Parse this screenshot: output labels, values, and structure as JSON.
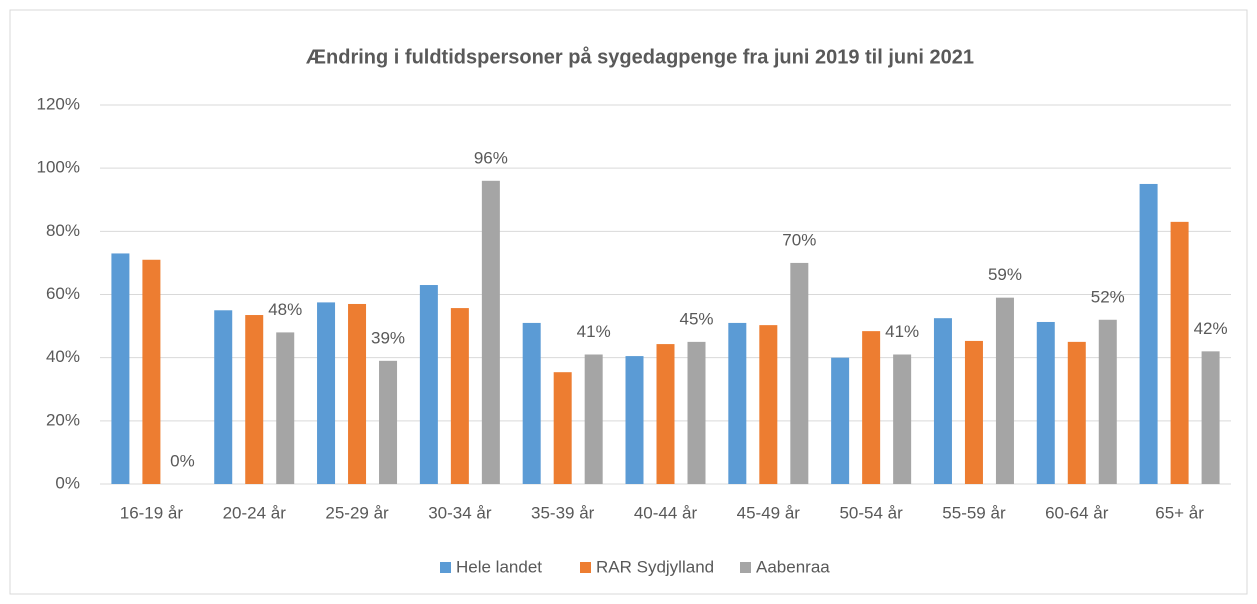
{
  "chart_data": {
    "type": "bar",
    "title": "Ændring i fuldtidspersoner på sygedagpenge fra juni 2019 til juni 2021",
    "categories": [
      "16-19 år",
      "20-24 år",
      "25-29 år",
      "30-34 år",
      "35-39 år",
      "40-44 år",
      "45-49 år",
      "50-54 år",
      "55-59 år",
      "60-64 år",
      "65+ år"
    ],
    "series": [
      {
        "name": "Hele landet",
        "color": "#5b9bd5",
        "values": [
          73,
          55,
          57.5,
          63,
          51,
          40.5,
          51,
          40,
          52.5,
          51.3,
          95
        ]
      },
      {
        "name": "RAR Sydjylland",
        "color": "#ed7d31",
        "values": [
          71,
          53.5,
          57,
          55.7,
          35.4,
          44.3,
          50.3,
          48.4,
          45.3,
          45,
          83
        ]
      },
      {
        "name": "Aabenraa",
        "color": "#a5a5a5",
        "values": [
          0,
          48,
          39,
          96,
          41,
          45,
          70,
          41,
          59,
          52,
          42
        ],
        "value_labels": [
          "0%",
          "48%",
          "39%",
          "96%",
          "41%",
          "45%",
          "70%",
          "41%",
          "59%",
          "52%",
          "42%"
        ]
      }
    ],
    "ylim": [
      0,
      120
    ],
    "yticks": [
      {
        "value": 0,
        "label": "0%"
      },
      {
        "value": 20,
        "label": "20%"
      },
      {
        "value": 40,
        "label": "40%"
      },
      {
        "value": 60,
        "label": "60%"
      },
      {
        "value": 80,
        "label": "80%"
      },
      {
        "value": 100,
        "label": "100%"
      },
      {
        "value": 120,
        "label": "120%"
      }
    ],
    "grid": true,
    "legend": "bottom"
  }
}
